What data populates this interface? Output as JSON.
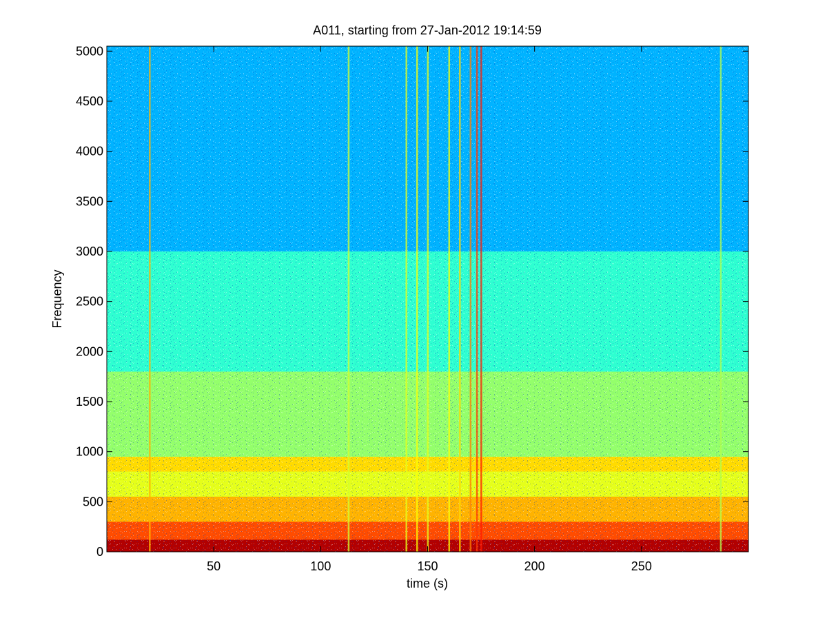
{
  "chart_data": {
    "type": "heatmap",
    "title": "A011, starting from 27-Jan-2012 19:14:59",
    "xlabel": "time (s)",
    "ylabel": "Frequency",
    "xlim": [
      0,
      300
    ],
    "ylim": [
      0,
      5050
    ],
    "xticks": [
      50,
      100,
      150,
      200,
      250
    ],
    "yticks": [
      0,
      500,
      1000,
      1500,
      2000,
      2500,
      3000,
      3500,
      4000,
      4500,
      5000
    ],
    "colormap": "jet",
    "grid": false,
    "colors": {
      "low": "#0080ff",
      "mid": "#00ffff",
      "high": "#ffff00",
      "peak": "#ff0000"
    },
    "energy_bands": [
      {
        "from": 0,
        "to": 120,
        "level": 0.95
      },
      {
        "from": 120,
        "to": 300,
        "level": 0.8
      },
      {
        "from": 300,
        "to": 550,
        "level": 0.7
      },
      {
        "from": 550,
        "to": 800,
        "level": 0.6
      },
      {
        "from": 800,
        "to": 950,
        "level": 0.66
      },
      {
        "from": 950,
        "to": 1800,
        "level": 0.52
      },
      {
        "from": 1800,
        "to": 3000,
        "level": 0.42
      },
      {
        "from": 3000,
        "to": 5050,
        "level": 0.3
      }
    ],
    "transient_events": [
      {
        "t": 20,
        "level": 0.7
      },
      {
        "t": 113,
        "level": 0.58
      },
      {
        "t": 140,
        "level": 0.6
      },
      {
        "t": 145,
        "level": 0.62
      },
      {
        "t": 150,
        "level": 0.6
      },
      {
        "t": 160,
        "level": 0.62
      },
      {
        "t": 165,
        "level": 0.66
      },
      {
        "t": 170,
        "level": 0.75
      },
      {
        "t": 173,
        "level": 0.82
      },
      {
        "t": 175,
        "level": 0.85
      },
      {
        "t": 287,
        "level": 0.55
      }
    ]
  }
}
